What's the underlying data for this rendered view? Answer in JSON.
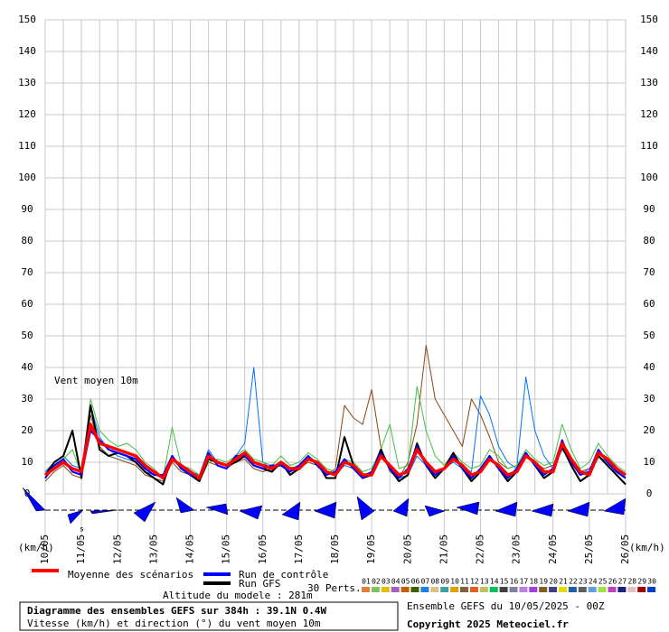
{
  "chart_data": {
    "type": "line",
    "annotation": "Vent moyen 10m",
    "y_unit_left": "(km/h)",
    "y_unit_right": "(km/h)",
    "xlim": [
      0,
      384
    ],
    "ylim": [
      0,
      150
    ],
    "yticks": [
      0,
      10,
      20,
      30,
      40,
      50,
      60,
      70,
      80,
      90,
      100,
      110,
      120,
      130,
      140,
      150
    ],
    "xticks": [
      {
        "value": 0,
        "label": "10/05"
      },
      {
        "value": 24,
        "label": "11/05"
      },
      {
        "value": 48,
        "label": "12/05"
      },
      {
        "value": 72,
        "label": "13/05"
      },
      {
        "value": 96,
        "label": "14/05"
      },
      {
        "value": 120,
        "label": "15/05"
      },
      {
        "value": 144,
        "label": "16/05"
      },
      {
        "value": 168,
        "label": "17/05"
      },
      {
        "value": 192,
        "label": "18/05"
      },
      {
        "value": 216,
        "label": "19/05"
      },
      {
        "value": 240,
        "label": "20/05"
      },
      {
        "value": 264,
        "label": "21/05"
      },
      {
        "value": 288,
        "label": "22/05"
      },
      {
        "value": 312,
        "label": "23/05"
      },
      {
        "value": 336,
        "label": "24/05"
      },
      {
        "value": 360,
        "label": "25/05"
      },
      {
        "value": 384,
        "label": "26/05"
      }
    ],
    "grid": true,
    "x": [
      0,
      6,
      12,
      18,
      24,
      30,
      36,
      42,
      48,
      54,
      60,
      66,
      72,
      78,
      84,
      90,
      96,
      102,
      108,
      114,
      120,
      126,
      132,
      138,
      144,
      150,
      156,
      162,
      168,
      174,
      180,
      186,
      192,
      198,
      204,
      210,
      216,
      222,
      228,
      234,
      240,
      246,
      252,
      258,
      264,
      270,
      276,
      282,
      288,
      294,
      300,
      306,
      312,
      318,
      324,
      330,
      336,
      342,
      348,
      354,
      360,
      366,
      372,
      378,
      384
    ],
    "perturbation_series": [
      {
        "color": "#8b4513",
        "values": [
          4,
          7,
          9,
          6,
          5,
          25,
          15,
          12,
          11,
          10,
          9,
          6,
          5,
          4,
          10,
          7,
          6,
          4,
          10,
          9,
          8,
          10,
          11,
          8,
          7,
          8,
          9,
          7,
          8,
          10,
          9,
          6,
          8,
          28,
          24,
          22,
          33,
          15,
          7,
          5,
          10,
          22,
          47,
          30,
          25,
          20,
          15,
          30,
          25,
          18,
          10,
          8,
          9,
          12,
          10,
          8,
          9,
          15,
          10,
          7,
          8,
          12,
          10,
          7,
          5
        ]
      },
      {
        "color": "#0070ff",
        "values": [
          7,
          10,
          12,
          9,
          8,
          28,
          18,
          14,
          12,
          11,
          10,
          7,
          6,
          5,
          11,
          8,
          7,
          6,
          14,
          10,
          9,
          12,
          16,
          40,
          10,
          8,
          9,
          8,
          9,
          12,
          10,
          7,
          6,
          9,
          8,
          6,
          7,
          13,
          8,
          5,
          6,
          12,
          9,
          6,
          8,
          10,
          8,
          7,
          31,
          25,
          15,
          10,
          8,
          37,
          20,
          12,
          8,
          14,
          10,
          6,
          8,
          12,
          10,
          7,
          6
        ]
      },
      {
        "color": "#40c040",
        "values": [
          5,
          8,
          11,
          14,
          6,
          30,
          20,
          17,
          15,
          16,
          14,
          10,
          8,
          5,
          21,
          9,
          8,
          6,
          10,
          11,
          10,
          12,
          14,
          11,
          10,
          9,
          12,
          9,
          10,
          13,
          11,
          8,
          7,
          11,
          10,
          7,
          8,
          14,
          22,
          8,
          9,
          34,
          20,
          12,
          9,
          13,
          10,
          8,
          9,
          14,
          12,
          8,
          9,
          14,
          11,
          9,
          10,
          22,
          14,
          8,
          10,
          16,
          12,
          9,
          7
        ]
      }
    ],
    "series": [
      {
        "name": "Run GFS",
        "color": "#000000",
        "width": 2,
        "values": [
          6,
          10,
          12,
          20,
          5,
          28,
          14,
          12,
          13,
          12,
          10,
          7,
          5,
          3,
          12,
          8,
          6,
          4,
          11,
          10,
          9,
          10,
          12,
          9,
          8,
          7,
          10,
          6,
          8,
          11,
          10,
          5,
          5,
          18,
          9,
          5,
          6,
          14,
          8,
          4,
          6,
          16,
          9,
          5,
          8,
          13,
          8,
          4,
          7,
          12,
          8,
          4,
          7,
          13,
          9,
          5,
          7,
          15,
          9,
          4,
          6,
          12,
          9,
          6,
          3
        ]
      },
      {
        "name": "Run de contrôle",
        "color": "#0000ff",
        "width": 2,
        "values": [
          5,
          9,
          11,
          7,
          6,
          20,
          17,
          14,
          13,
          12,
          11,
          8,
          6,
          6,
          12,
          8,
          6,
          5,
          13,
          9,
          8,
          12,
          12,
          9,
          8,
          9,
          9,
          7,
          9,
          12,
          9,
          6,
          7,
          11,
          8,
          5,
          7,
          13,
          8,
          5,
          8,
          15,
          9,
          6,
          8,
          12,
          8,
          5,
          8,
          12,
          8,
          5,
          8,
          13,
          9,
          6,
          8,
          17,
          10,
          6,
          7,
          14,
          10,
          7,
          5
        ]
      },
      {
        "name": "Moyenne des scénarios",
        "color": "#ff0000",
        "width": 3.5,
        "values": [
          6,
          8,
          10,
          8,
          7,
          22,
          16,
          15,
          14,
          13,
          12,
          9,
          7,
          5,
          11,
          9,
          7,
          5,
          12,
          10,
          9,
          11,
          13,
          10,
          9,
          8,
          10,
          8,
          8,
          11,
          10,
          7,
          6,
          10,
          9,
          6,
          6,
          12,
          9,
          6,
          7,
          14,
          10,
          7,
          8,
          11,
          9,
          6,
          7,
          11,
          9,
          6,
          7,
          12,
          10,
          7,
          7,
          16,
          11,
          7,
          6,
          13,
          11,
          8,
          6
        ]
      }
    ],
    "altitude": "Altitude du modele : 281m",
    "ensemble_legend": {
      "label": "30 Perts.",
      "members": [
        {
          "name": "01",
          "color": "#e08040"
        },
        {
          "name": "02",
          "color": "#80c060"
        },
        {
          "name": "03",
          "color": "#e0c000"
        },
        {
          "name": "04",
          "color": "#a060c0"
        },
        {
          "name": "05",
          "color": "#c06000"
        },
        {
          "name": "06",
          "color": "#406000"
        },
        {
          "name": "07",
          "color": "#2080e0"
        },
        {
          "name": "08",
          "color": "#e0c080"
        },
        {
          "name": "09",
          "color": "#40a0a0"
        },
        {
          "name": "10",
          "color": "#e0a000"
        },
        {
          "name": "11",
          "color": "#806040"
        },
        {
          "name": "12",
          "color": "#e06020"
        },
        {
          "name": "13",
          "color": "#c0c060"
        },
        {
          "name": "14",
          "color": "#00c060"
        },
        {
          "name": "15",
          "color": "#404040"
        },
        {
          "name": "16",
          "color": "#8080a0"
        },
        {
          "name": "17",
          "color": "#c080e0"
        },
        {
          "name": "18",
          "color": "#a040e0"
        },
        {
          "name": "19",
          "color": "#806020"
        },
        {
          "name": "20",
          "color": "#404080"
        },
        {
          "name": "21",
          "color": "#e0e000"
        },
        {
          "name": "22",
          "color": "#2060a0"
        },
        {
          "name": "23",
          "color": "#606060"
        },
        {
          "name": "24",
          "color": "#60a0e0"
        },
        {
          "name": "25",
          "color": "#a0e040"
        },
        {
          "name": "26",
          "color": "#c040c0"
        },
        {
          "name": "27",
          "color": "#202080"
        },
        {
          "name": "28",
          "color": "#e0c0c0"
        },
        {
          "name": "29",
          "color": "#a00000"
        },
        {
          "name": "30",
          "color": "#0040c0"
        }
      ]
    },
    "title": "Diagramme des ensembles GEFS sur 384h : 39.1N 0.4W",
    "subtitle": "Vitesse (km/h) et direction (°) du vent moyen 10m",
    "run_info": "Ensemble GEFS du 10/05/2025 - 00Z",
    "copyright": "Copyright 2025 Meteociel.fr"
  }
}
